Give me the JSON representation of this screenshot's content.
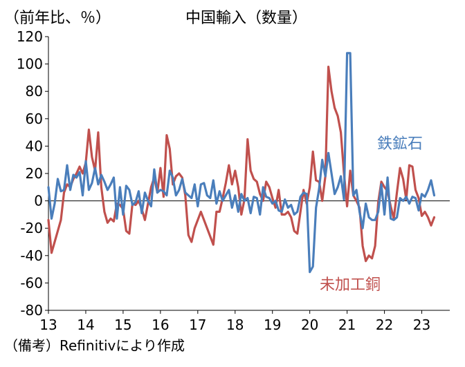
{
  "chart_data": {
    "type": "line",
    "title": "中国輸入（数量）",
    "ylabel": "（前年比、％）",
    "note": "（備考）Refinitivにより作成",
    "ylim": [
      -80,
      120
    ],
    "yticks": [
      120,
      100,
      80,
      60,
      40,
      20,
      0,
      -20,
      -40,
      -60,
      -80
    ],
    "xlim": [
      2013.0,
      2023.75
    ],
    "xticks": [
      {
        "label": "13",
        "x": 2013.0
      },
      {
        "label": "14",
        "x": 2014.0
      },
      {
        "label": "15",
        "x": 2015.0
      },
      {
        "label": "16",
        "x": 2016.0
      },
      {
        "label": "17",
        "x": 2017.0
      },
      {
        "label": "18",
        "x": 2018.0
      },
      {
        "label": "19",
        "x": 2019.0
      },
      {
        "label": "20",
        "x": 2020.0
      },
      {
        "label": "21",
        "x": 2021.0
      },
      {
        "label": "22",
        "x": 2022.0
      },
      {
        "label": "23",
        "x": 2023.0
      }
    ],
    "x_start": 2013.0,
    "x_step": 0.083333,
    "series": [
      {
        "name": "鉄鉱石",
        "color": "#4a7ebb",
        "values": [
          10,
          -13,
          -2,
          16,
          7,
          8,
          26,
          8,
          19,
          17,
          21,
          4,
          29,
          8,
          13,
          24,
          12,
          19,
          14,
          8,
          12,
          17,
          -13,
          10,
          -10,
          11,
          8,
          -3,
          -1,
          7,
          -9,
          6,
          0,
          -4,
          23,
          6,
          8,
          7,
          4,
          22,
          17,
          4,
          8,
          16,
          6,
          4,
          2,
          12,
          -4,
          12,
          13,
          4,
          2,
          15,
          -2,
          7,
          0,
          4,
          8,
          -5,
          4,
          -8,
          5,
          0,
          2,
          -9,
          3,
          2,
          -10,
          10,
          3,
          2,
          -2,
          0,
          -7,
          -8,
          1,
          -5,
          -3,
          -10,
          -8,
          3,
          6,
          5,
          -52,
          -48,
          -5,
          9,
          30,
          18,
          35,
          20,
          5,
          10,
          18,
          1,
          108,
          108,
          4,
          8,
          -8,
          -20,
          -2,
          -12,
          -14,
          -14,
          -8,
          12,
          -10,
          17,
          -13,
          -14,
          -12,
          2,
          0,
          3,
          -2,
          3,
          2,
          -7,
          5,
          3,
          8,
          15,
          4
        ]
      },
      {
        "name": "未加工銅",
        "color": "#c0504d",
        "values": [
          -14,
          -38,
          -30,
          -22,
          -14,
          6,
          12,
          10,
          16,
          20,
          25,
          20,
          28,
          52,
          32,
          22,
          50,
          10,
          -8,
          -16,
          -13,
          -15,
          -2,
          -3,
          -6,
          -22,
          -24,
          -2,
          -3,
          0,
          -6,
          -14,
          -2,
          10,
          17,
          6,
          24,
          3,
          48,
          38,
          12,
          18,
          20,
          17,
          4,
          -25,
          -30,
          -20,
          -14,
          -8,
          -14,
          -20,
          -26,
          -32,
          -8,
          -8,
          2,
          13,
          26,
          12,
          22,
          10,
          -10,
          1,
          45,
          22,
          16,
          14,
          5,
          0,
          14,
          10,
          2,
          -5,
          8,
          -10,
          -10,
          -8,
          -12,
          -22,
          -24,
          -8,
          8,
          -2,
          10,
          36,
          15,
          14,
          0,
          18,
          98,
          80,
          68,
          62,
          50,
          20,
          -4,
          22,
          4,
          0,
          -5,
          -33,
          -44,
          -40,
          -42,
          -33,
          -1,
          14,
          10,
          7,
          -4,
          -13,
          6,
          24,
          16,
          1,
          26,
          25,
          8,
          2,
          -11,
          -8,
          -12,
          -18,
          -12
        ]
      }
    ],
    "series_labels": [
      "鉄鉱石",
      "未加工銅"
    ]
  }
}
